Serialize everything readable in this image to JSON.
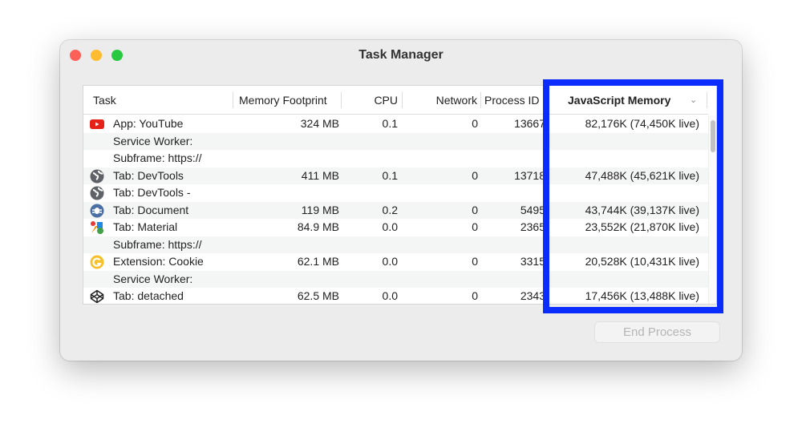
{
  "window": {
    "title": "Task Manager"
  },
  "columns": {
    "task": "Task",
    "memory": "Memory Footprint",
    "cpu": "CPU",
    "network": "Network",
    "pid": "Process ID",
    "js": "JavaScript Memory"
  },
  "rows": [
    {
      "icon": "youtube-icon",
      "task": "App: YouTube",
      "memory": "324 MB",
      "cpu": "0.1",
      "network": "0",
      "pid": "13667",
      "js": "82,176K (74,450K live)"
    },
    {
      "icon": "",
      "task": "Service Worker:",
      "memory": "",
      "cpu": "",
      "network": "",
      "pid": "",
      "js": ""
    },
    {
      "icon": "",
      "task": "Subframe: https://",
      "memory": "",
      "cpu": "",
      "network": "",
      "pid": "",
      "js": ""
    },
    {
      "icon": "globe-icon",
      "task": "Tab: DevTools",
      "memory": "411 MB",
      "cpu": "0.1",
      "network": "0",
      "pid": "13718",
      "js": "47,488K (45,621K live)"
    },
    {
      "icon": "globe-icon",
      "task": "Tab: DevTools -",
      "memory": "",
      "cpu": "",
      "network": "",
      "pid": "",
      "js": ""
    },
    {
      "icon": "bug-icon",
      "task": "Tab: Document",
      "memory": "119 MB",
      "cpu": "0.2",
      "network": "0",
      "pid": "5495",
      "js": "43,744K (39,137K live)"
    },
    {
      "icon": "material-icon",
      "task": "Tab: Material",
      "memory": "84.9 MB",
      "cpu": "0.0",
      "network": "0",
      "pid": "2365",
      "js": "23,552K (21,870K live)"
    },
    {
      "icon": "",
      "task": "Subframe: https://",
      "memory": "",
      "cpu": "",
      "network": "",
      "pid": "",
      "js": ""
    },
    {
      "icon": "cookie-extension-icon",
      "task": "Extension: Cookie",
      "memory": "62.1 MB",
      "cpu": "0.0",
      "network": "0",
      "pid": "3315",
      "js": "20,528K (10,431K live)"
    },
    {
      "icon": "",
      "task": "Service Worker:",
      "memory": "",
      "cpu": "",
      "network": "",
      "pid": "",
      "js": ""
    },
    {
      "icon": "codepen-icon",
      "task": "Tab: detached",
      "memory": "62.5 MB",
      "cpu": "0.0",
      "network": "0",
      "pid": "2343",
      "js": "17,456K (13,488K live)"
    }
  ],
  "buttons": {
    "end_process": "End Process"
  },
  "colors": {
    "highlight": "#0a2cff",
    "close": "#fe5f57",
    "minimize": "#febc2e",
    "zoom": "#28c840"
  }
}
